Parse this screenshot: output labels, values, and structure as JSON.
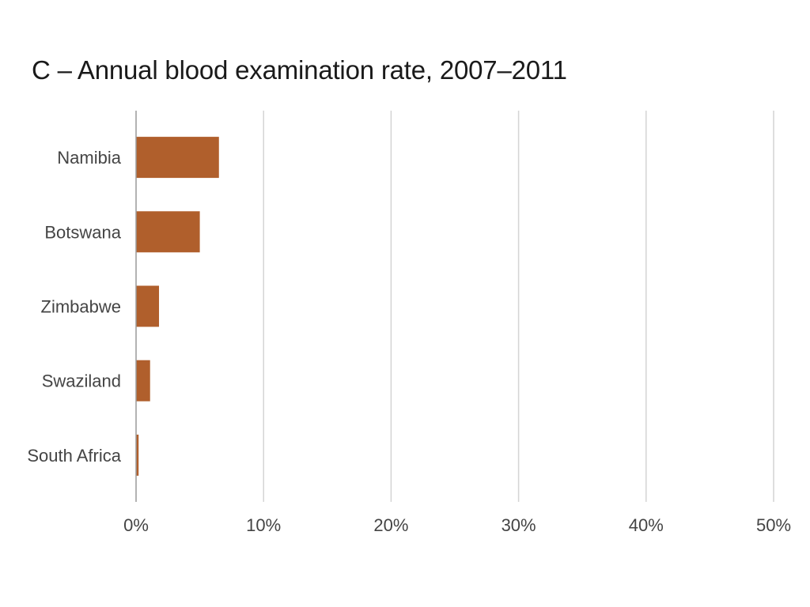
{
  "chart_data": {
    "type": "bar",
    "orientation": "horizontal",
    "title": "C – Annual blood examination rate, 2007–2011",
    "xlabel": "",
    "ylabel": "",
    "categories": [
      "Namibia",
      "Botswana",
      "Zimbabwe",
      "Swaziland",
      "South Africa"
    ],
    "values": [
      6.5,
      5.0,
      1.8,
      1.1,
      0.2
    ],
    "unit": "%",
    "xlim": [
      0,
      50
    ],
    "xticks": [
      0,
      10,
      20,
      30,
      40,
      50
    ],
    "xtick_labels": [
      "0%",
      "10%",
      "20%",
      "30%",
      "40%",
      "50%"
    ],
    "grid": true,
    "bar_color": "#b05f2c",
    "grid_color": "#d4d4d4"
  }
}
